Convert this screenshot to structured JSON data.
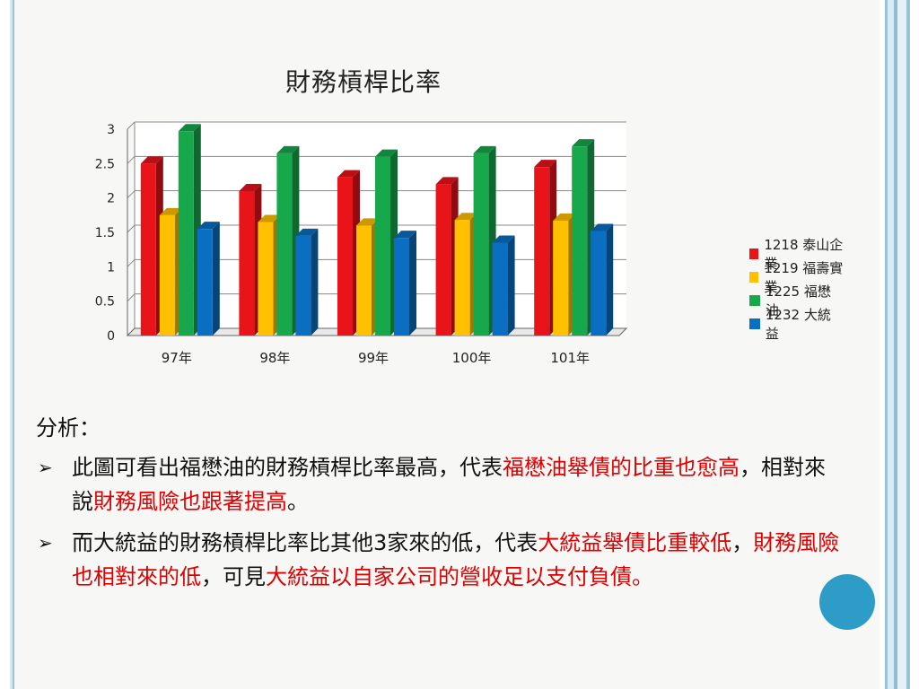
{
  "chart_data": {
    "type": "bar",
    "title": "財務槓桿比率",
    "categories": [
      "97年",
      "98年",
      "99年",
      "100年",
      "101年"
    ],
    "series": [
      {
        "name": "1218 泰山企業",
        "color": "#e8141a",
        "values": [
          2.5,
          2.1,
          2.3,
          2.2,
          2.45
        ]
      },
      {
        "name": "1219 福壽實業",
        "color": "#ffc000",
        "values": [
          1.75,
          1.65,
          1.6,
          1.68,
          1.67
        ]
      },
      {
        "name": "1225 福懋油",
        "color": "#17a84c",
        "values": [
          2.97,
          2.65,
          2.6,
          2.65,
          2.75
        ]
      },
      {
        "name": "1232 大統益",
        "color": "#0a6fc2",
        "values": [
          1.55,
          1.45,
          1.42,
          1.35,
          1.52
        ]
      }
    ],
    "yticks": [
      "0",
      "0.5",
      "1",
      "1.5",
      "2",
      "2.5",
      "3"
    ],
    "ylim": [
      0,
      3
    ],
    "grid": true,
    "legend": "right"
  },
  "analysis": {
    "heading": "分析：",
    "bullets": [
      {
        "segments": [
          {
            "text": "此圖可看出福懋油的財務槓桿比率最高，代表",
            "red": false
          },
          {
            "text": "福懋油舉債的比重也愈高",
            "red": true
          },
          {
            "text": "，相對來說",
            "red": false
          },
          {
            "text": "財務風險也跟著提高",
            "red": true
          },
          {
            "text": "。",
            "red": false
          }
        ]
      },
      {
        "segments": [
          {
            "text": "而大統益的財務槓桿比率比其他3家來的低，代表",
            "red": false
          },
          {
            "text": "大統益舉債比重較低",
            "red": true
          },
          {
            "text": "，",
            "red": false
          },
          {
            "text": "財務風險也相對來的低",
            "red": true
          },
          {
            "text": "，可見",
            "red": false
          },
          {
            "text": "大統益以自家公司的營收足以支付負債。",
            "red": true
          }
        ]
      }
    ]
  }
}
